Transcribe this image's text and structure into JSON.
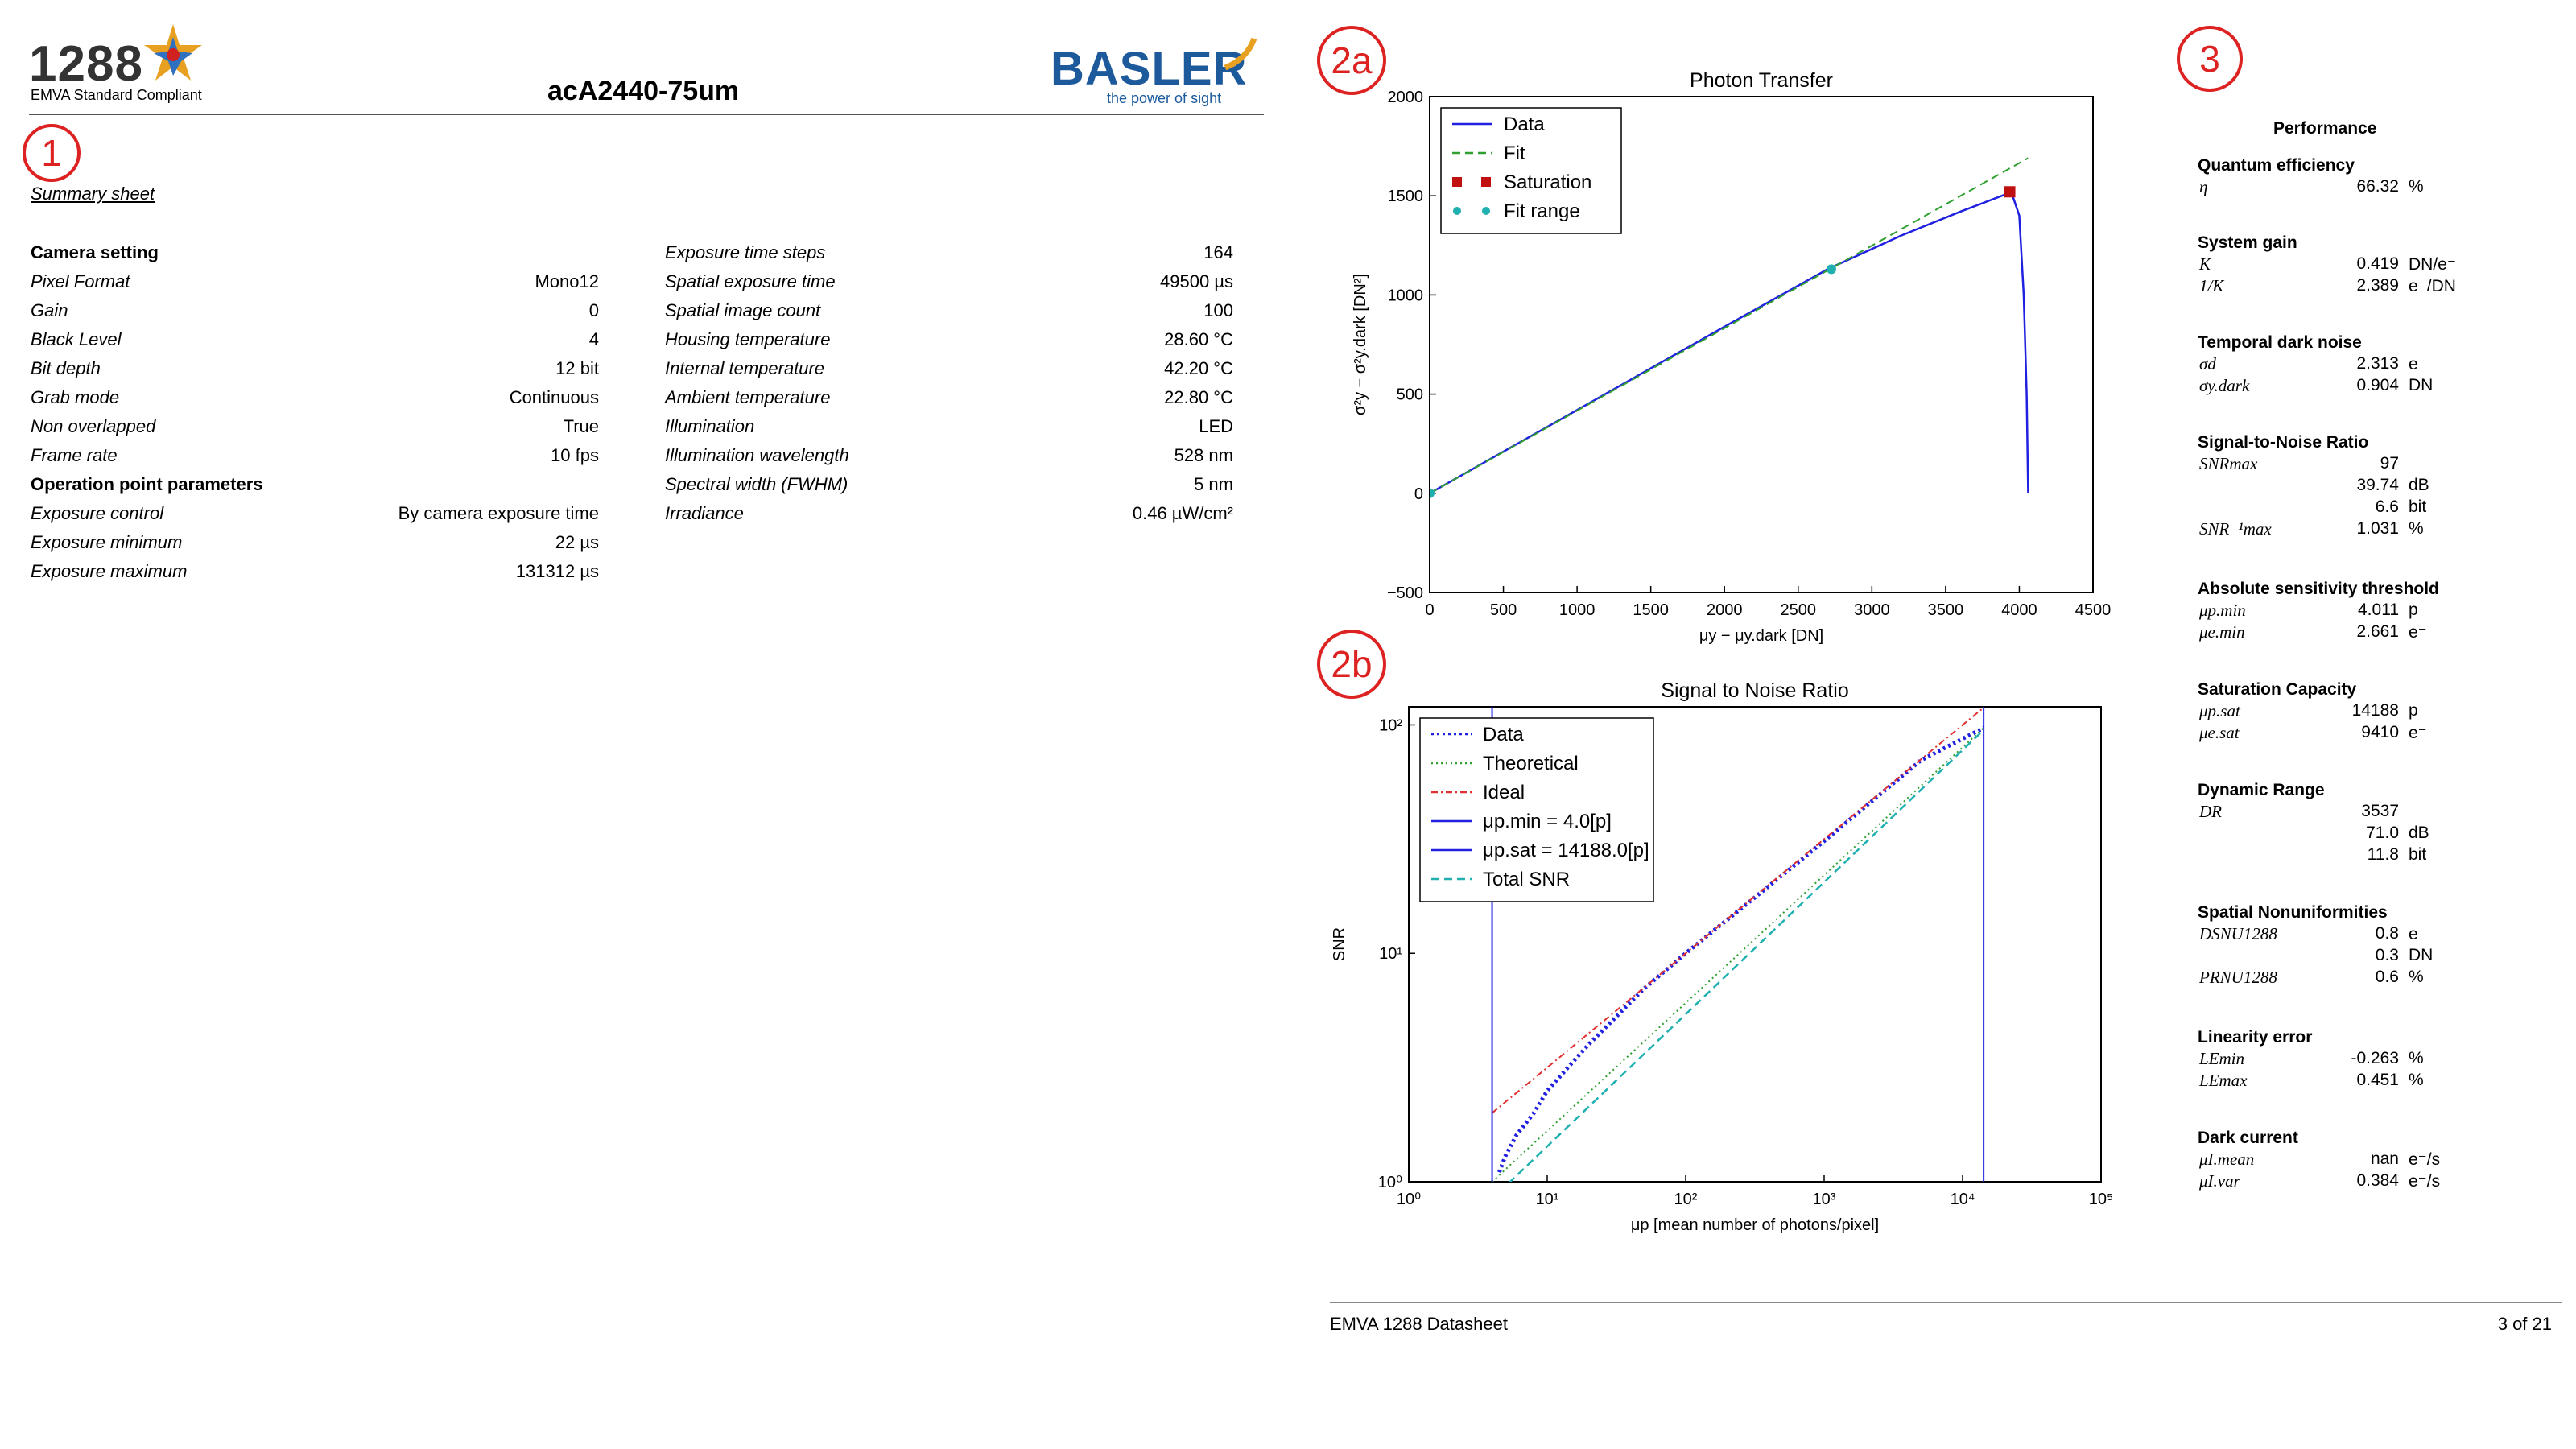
{
  "header": {
    "logo_text": "1288",
    "logo_sub": "EMVA Standard Compliant",
    "title": "acA2440-75um",
    "brand": "BASLER",
    "brand_sub": "the power of sight"
  },
  "markers": {
    "m1": "1",
    "m2a": "2a",
    "m2b": "2b",
    "m3": "3"
  },
  "summary": {
    "title": "Summary sheet",
    "camera_setting": "Camera setting",
    "operation_point": "Operation point parameters",
    "left": [
      {
        "label": "Pixel Format",
        "value": "Mono12"
      },
      {
        "label": "Gain",
        "value": "0"
      },
      {
        "label": "Black Level",
        "value": "4"
      },
      {
        "label": "Bit depth",
        "value": "12 bit"
      },
      {
        "label": "Grab mode",
        "value": "Continuous"
      },
      {
        "label": "Non overlapped",
        "value": "True"
      },
      {
        "label": "Frame rate",
        "value": "10 fps"
      }
    ],
    "left2": [
      {
        "label": "Exposure control",
        "value": "By camera exposure time"
      },
      {
        "label": "Exposure minimum",
        "value": "22 µs"
      },
      {
        "label": "Exposure maximum",
        "value": "131312 µs"
      }
    ],
    "right": [
      {
        "label": "Exposure time steps",
        "value": "164"
      },
      {
        "label": "Spatial exposure time",
        "value": "49500 µs"
      },
      {
        "label": "Spatial image count",
        "value": "100"
      },
      {
        "label": "Housing temperature",
        "value": "28.60 °C"
      },
      {
        "label": "Internal temperature",
        "value": "42.20 °C"
      },
      {
        "label": "Ambient temperature",
        "value": "22.80 °C"
      },
      {
        "label": "Illumination",
        "value": "LED"
      },
      {
        "label": "Illumination wavelength",
        "value": "528 nm"
      },
      {
        "label": "Spectral width (FWHM)",
        "value": "5 nm"
      },
      {
        "label": "Irradiance",
        "value": "0.46 µW/cm²"
      }
    ]
  },
  "chart_data": [
    {
      "type": "line",
      "title": "Photon Transfer",
      "xlabel": "μy − μy.dark [DN]",
      "ylabel": "σ²y − σ²y.dark [DN²]",
      "xlim": [
        0,
        4500
      ],
      "ylim": [
        -500,
        2000
      ],
      "xticks": [
        "0",
        "500",
        "1000",
        "1500",
        "2000",
        "2500",
        "3000",
        "3500",
        "4000",
        "4500"
      ],
      "yticks": [
        "−500",
        "0",
        "500",
        "1000",
        "1500",
        "2000"
      ],
      "legend_position": "top-left",
      "series": [
        {
          "name": "Data",
          "color": "#2020e0",
          "x": [
            0,
            1000,
            2000,
            2700,
            3200,
            3600,
            3900,
            3950,
            4000,
            4030,
            4050,
            4060
          ],
          "y": [
            0,
            420,
            840,
            1130,
            1300,
            1420,
            1505,
            1510,
            1400,
            1000,
            500,
            0
          ]
        },
        {
          "name": "Fit",
          "color": "#30a030",
          "x": [
            0,
            4060
          ],
          "y": [
            0,
            1690
          ]
        },
        {
          "name": "Saturation",
          "color": "#c01010",
          "x": [
            3935
          ],
          "y": [
            1520
          ]
        },
        {
          "name": "Fit range",
          "color": "#20b0b0",
          "x": [
            0,
            2725
          ],
          "y": [
            0,
            1130
          ]
        }
      ]
    },
    {
      "type": "line",
      "title": "Signal to Noise Ratio",
      "xlabel": "μp [mean number of photons/pixel]",
      "ylabel": "SNR",
      "xscale": "log",
      "yscale": "log",
      "xlim": [
        1,
        100000
      ],
      "ylim": [
        1,
        120
      ],
      "xticks": [
        "10⁰",
        "10¹",
        "10²",
        "10³",
        "10⁴",
        "10⁵"
      ],
      "yticks": [
        "10⁰",
        "10¹",
        "10²"
      ],
      "legend_position": "top-left",
      "series": [
        {
          "name": "Data",
          "color": "#2020e0",
          "x": [
            4.5,
            5,
            6,
            8,
            10,
            15,
            20,
            50,
            100,
            500,
            1000,
            5000,
            14188
          ],
          "y": [
            1.1,
            1.3,
            1.6,
            2.0,
            2.5,
            3.3,
            4.0,
            7.0,
            10,
            22,
            31,
            70,
            97
          ]
        },
        {
          "name": "Theoretical",
          "color": "#30a030",
          "x": [
            4,
            14188
          ],
          "y": [
            1.0,
            97
          ]
        },
        {
          "name": "Ideal",
          "color": "#e03030",
          "x": [
            4,
            14188
          ],
          "y": [
            2.0,
            119
          ]
        },
        {
          "name": "μp.min = 4.0[p]",
          "color": "#2020e0",
          "x": [
            4.0,
            4.0
          ],
          "y": [
            1,
            120
          ]
        },
        {
          "name": "μp.sat = 14188.0[p]",
          "color": "#2020e0",
          "x": [
            14188,
            14188
          ],
          "y": [
            1,
            120
          ]
        },
        {
          "name": "Total SNR",
          "color": "#20b0b0",
          "x": [
            4.5,
            14188
          ],
          "y": [
            0.9,
            95
          ]
        }
      ]
    }
  ],
  "performance": {
    "title": "Performance",
    "sections": [
      {
        "heading": "Quantum efficiency",
        "rows": [
          {
            "label": "η",
            "value": "66.32",
            "unit": "%"
          }
        ]
      },
      {
        "heading": "System gain",
        "rows": [
          {
            "label": "K",
            "value": "0.419",
            "unit": "DN/e⁻"
          },
          {
            "label": "1/K",
            "value": "2.389",
            "unit": "e⁻/DN"
          }
        ]
      },
      {
        "heading": "Temporal dark noise",
        "rows": [
          {
            "label": "σd",
            "value": "2.313",
            "unit": "e⁻"
          },
          {
            "label": "σy.dark",
            "value": "0.904",
            "unit": "DN"
          }
        ]
      },
      {
        "heading": "Signal-to-Noise Ratio",
        "rows": [
          {
            "label": "SNRmax",
            "value": "97",
            "unit": ""
          },
          {
            "label": "",
            "value": "39.74",
            "unit": "dB"
          },
          {
            "label": "",
            "value": "6.6",
            "unit": "bit"
          },
          {
            "label": "SNR⁻¹max",
            "value": "1.031",
            "unit": "%"
          }
        ]
      },
      {
        "heading": "Absolute sensitivity threshold",
        "rows": [
          {
            "label": "μp.min",
            "value": "4.011",
            "unit": "p"
          },
          {
            "label": "μe.min",
            "value": "2.661",
            "unit": "e⁻"
          }
        ]
      },
      {
        "heading": "Saturation Capacity",
        "rows": [
          {
            "label": "μp.sat",
            "value": "14188",
            "unit": "p"
          },
          {
            "label": "μe.sat",
            "value": "9410",
            "unit": "e⁻"
          }
        ]
      },
      {
        "heading": "Dynamic Range",
        "rows": [
          {
            "label": "DR",
            "value": "3537",
            "unit": ""
          },
          {
            "label": "",
            "value": "71.0",
            "unit": "dB"
          },
          {
            "label": "",
            "value": "11.8",
            "unit": "bit"
          }
        ]
      },
      {
        "heading": "Spatial Nonuniformities",
        "rows": [
          {
            "label": "DSNU1288",
            "value": "0.8",
            "unit": "e⁻"
          },
          {
            "label": "",
            "value": "0.3",
            "unit": "DN"
          },
          {
            "label": "PRNU1288",
            "value": "0.6",
            "unit": "%"
          }
        ]
      },
      {
        "heading": "Linearity error",
        "rows": [
          {
            "label": "LEmin",
            "value": "-0.263",
            "unit": "%"
          },
          {
            "label": "LEmax",
            "value": "0.451",
            "unit": "%"
          }
        ]
      },
      {
        "heading": "Dark current",
        "rows": [
          {
            "label": "μI.mean",
            "value": "nan",
            "unit": "e⁻/s"
          },
          {
            "label": "μI.var",
            "value": "0.384",
            "unit": "e⁻/s"
          }
        ]
      }
    ]
  },
  "footer": {
    "left": "EMVA 1288 Datasheet",
    "right": "3 of 21"
  }
}
